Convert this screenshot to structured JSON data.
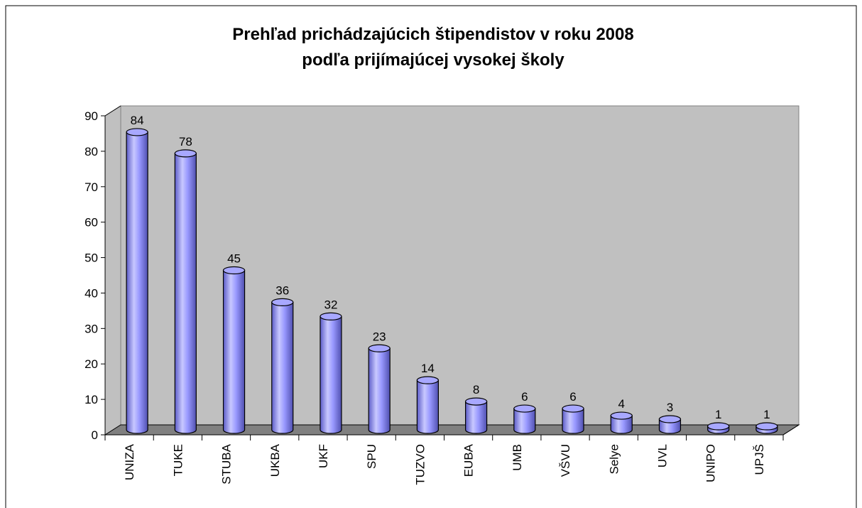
{
  "chart_data": {
    "type": "bar3d",
    "title": [
      "Prehľad prichádzajúcich štipendistov v roku 2008",
      "podľa prijímajúcej vysokej školy"
    ],
    "categories": [
      "UNIZA",
      "TUKE",
      "STUBA",
      "UKBA",
      "UKF",
      "SPU",
      "TUZVO",
      "EUBA",
      "UMB",
      "VŠVU",
      "Selye",
      "UVL",
      "UNIPO",
      "UPJŠ"
    ],
    "values": [
      84,
      78,
      45,
      36,
      32,
      23,
      14,
      8,
      6,
      6,
      4,
      3,
      1,
      1
    ],
    "color": "#9999ff",
    "ylim": [
      0,
      90
    ],
    "yticks": [
      0,
      10,
      20,
      30,
      40,
      50,
      60,
      70,
      80,
      90
    ]
  }
}
